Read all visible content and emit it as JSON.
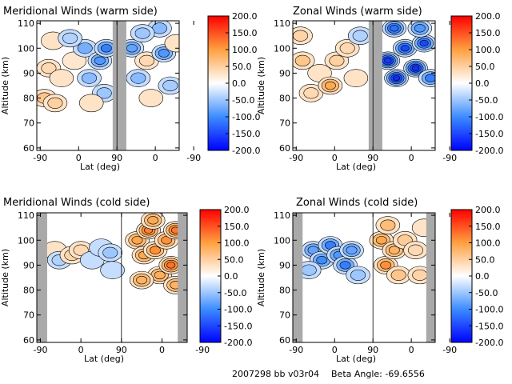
{
  "footer": {
    "id_text": "2007298 bb v03r04",
    "beta_text": "Beta Angle: -69.6556"
  },
  "chart_data": [
    {
      "type": "heatmap",
      "title": "Meridional Winds (warm side)",
      "xlabel": "Lat (deg)",
      "ylabel": "Altitude (km)",
      "xticks": [
        "-90",
        "0",
        "90",
        "0",
        "-90"
      ],
      "yticks": [
        60,
        70,
        80,
        90,
        100,
        110
      ],
      "ylim": [
        59,
        111
      ],
      "colorbar": {
        "min": -200,
        "max": 200,
        "ticks": [
          "200.0",
          "150.0",
          "100.0",
          "50.0",
          "0.0",
          "-50.0",
          "-100.0",
          "-150.0",
          "-200.0"
        ]
      },
      "nodata_band": [
        80,
        112
      ],
      "blobs": [
        {
          "x": -80,
          "y": 80,
          "v": 60
        },
        {
          "x": -55,
          "y": 78,
          "v": 50
        },
        {
          "x": -70,
          "y": 92,
          "v": 40
        },
        {
          "x": -40,
          "y": 88,
          "v": 35
        },
        {
          "x": -60,
          "y": 103,
          "v": 30
        },
        {
          "x": -10,
          "y": 95,
          "v": 25
        },
        {
          "x": 15,
          "y": 100,
          "v": -70
        },
        {
          "x": 25,
          "y": 88,
          "v": -60
        },
        {
          "x": 50,
          "y": 95,
          "v": -90
        },
        {
          "x": 65,
          "y": 100,
          "v": -110
        },
        {
          "x": 60,
          "y": 82,
          "v": -50
        },
        {
          "x": 30,
          "y": 78,
          "v": 35
        },
        {
          "x": -20,
          "y": 104,
          "v": -40
        },
        {
          "x": 125,
          "y": 100,
          "v": -80
        },
        {
          "x": 140,
          "y": 88,
          "v": -60
        },
        {
          "x": 160,
          "y": 95,
          "v": 40
        },
        {
          "x": 170,
          "y": 80,
          "v": 30
        },
        {
          "x": 200,
          "y": 98,
          "v": -90
        },
        {
          "x": 215,
          "y": 85,
          "v": -45
        },
        {
          "x": 190,
          "y": 108,
          "v": -60
        },
        {
          "x": 230,
          "y": 102,
          "v": 30
        },
        {
          "x": 150,
          "y": 106,
          "v": -50
        }
      ]
    },
    {
      "type": "heatmap",
      "title": "Zonal Winds (warm side)",
      "xlabel": "Lat (deg)",
      "ylabel": "Altitude (km)",
      "xticks": [
        "-90",
        "0",
        "90",
        "0",
        "-90"
      ],
      "yticks": [
        60,
        70,
        80,
        90,
        100,
        110
      ],
      "ylim": [
        59,
        111
      ],
      "colorbar": {
        "min": -200,
        "max": 200,
        "ticks": [
          "200.0",
          "150.0",
          "100.0",
          "50.0",
          "0.0",
          "-50.0",
          "-100.0",
          "-150.0",
          "-200.0"
        ]
      },
      "nodata_band": [
        80,
        112
      ],
      "blobs": [
        {
          "x": -75,
          "y": 95,
          "v": 60
        },
        {
          "x": -80,
          "y": 105,
          "v": 45
        },
        {
          "x": -55,
          "y": 82,
          "v": 40
        },
        {
          "x": -35,
          "y": 90,
          "v": 35
        },
        {
          "x": -10,
          "y": 85,
          "v": 90
        },
        {
          "x": 5,
          "y": 95,
          "v": 50
        },
        {
          "x": 30,
          "y": 100,
          "v": 40
        },
        {
          "x": 50,
          "y": 88,
          "v": 35
        },
        {
          "x": 60,
          "y": 105,
          "v": -40
        },
        {
          "x": 125,
          "y": 95,
          "v": -160
        },
        {
          "x": 145,
          "y": 88,
          "v": -170
        },
        {
          "x": 165,
          "y": 100,
          "v": -150
        },
        {
          "x": 190,
          "y": 92,
          "v": -165
        },
        {
          "x": 210,
          "y": 102,
          "v": -150
        },
        {
          "x": 225,
          "y": 88,
          "v": -110
        },
        {
          "x": 140,
          "y": 108,
          "v": -120
        },
        {
          "x": 200,
          "y": 108,
          "v": -90
        }
      ]
    },
    {
      "type": "heatmap",
      "title": "Meridional Winds (cold side)",
      "xlabel": "Lat (deg)",
      "ylabel": "Altitude (km)",
      "xticks": [
        "-90",
        "0",
        "90",
        "0",
        "-90"
      ],
      "yticks": [
        60,
        70,
        80,
        90,
        100,
        110
      ],
      "ylim": [
        59,
        111
      ],
      "colorbar": {
        "min": -200,
        "max": 200,
        "ticks": [
          "200.0",
          "150.0",
          "100.0",
          "50.0",
          "0.0",
          "-50.0",
          "-100.0",
          "-150.0",
          "-200.0"
        ]
      },
      "nodata_bands": [
        [
          -98,
          -75
        ],
        [
          215,
          236
        ]
      ],
      "blobs": [
        {
          "x": -58,
          "y": 96,
          "v": 35
        },
        {
          "x": -48,
          "y": 92,
          "v": -40
        },
        {
          "x": -20,
          "y": 94,
          "v": 45
        },
        {
          "x": 0,
          "y": 96,
          "v": 40
        },
        {
          "x": 25,
          "y": 92,
          "v": -35
        },
        {
          "x": 45,
          "y": 97,
          "v": -35
        },
        {
          "x": 65,
          "y": 95,
          "v": -50
        },
        {
          "x": 70,
          "y": 88,
          "v": -35
        },
        {
          "x": 125,
          "y": 100,
          "v": 95
        },
        {
          "x": 140,
          "y": 94,
          "v": 90
        },
        {
          "x": 150,
          "y": 104,
          "v": 120
        },
        {
          "x": 165,
          "y": 96,
          "v": 110
        },
        {
          "x": 175,
          "y": 86,
          "v": 85
        },
        {
          "x": 190,
          "y": 100,
          "v": 110
        },
        {
          "x": 200,
          "y": 90,
          "v": 130
        },
        {
          "x": 210,
          "y": 104,
          "v": 125
        },
        {
          "x": 210,
          "y": 82,
          "v": 80
        },
        {
          "x": 135,
          "y": 84,
          "v": 80
        },
        {
          "x": 160,
          "y": 108,
          "v": 90
        }
      ]
    },
    {
      "type": "heatmap",
      "title": "Zonal Winds (cold side)",
      "xlabel": "Lat (deg)",
      "ylabel": "Altitude (km)",
      "xticks": [
        "-90",
        "0",
        "90",
        "0",
        "-90"
      ],
      "yticks": [
        60,
        70,
        80,
        90,
        100,
        110
      ],
      "ylim": [
        59,
        111
      ],
      "colorbar": {
        "min": -200,
        "max": 200,
        "ticks": [
          "200.0",
          "150.0",
          "100.0",
          "50.0",
          "0.0",
          "-50.0",
          "-100.0",
          "-150.0",
          "-200.0"
        ]
      },
      "nodata_bands": [
        [
          -98,
          -75
        ],
        [
          215,
          236
        ]
      ],
      "blobs": [
        {
          "x": -50,
          "y": 96,
          "v": -80
        },
        {
          "x": -30,
          "y": 92,
          "v": -100
        },
        {
          "x": -10,
          "y": 98,
          "v": -110
        },
        {
          "x": 10,
          "y": 94,
          "v": -90
        },
        {
          "x": 25,
          "y": 90,
          "v": -110
        },
        {
          "x": 40,
          "y": 96,
          "v": -80
        },
        {
          "x": -60,
          "y": 88,
          "v": -50
        },
        {
          "x": 55,
          "y": 86,
          "v": -50
        },
        {
          "x": 110,
          "y": 100,
          "v": 95
        },
        {
          "x": 120,
          "y": 90,
          "v": 110
        },
        {
          "x": 140,
          "y": 96,
          "v": 80
        },
        {
          "x": 150,
          "y": 86,
          "v": 60
        },
        {
          "x": 165,
          "y": 100,
          "v": 55
        },
        {
          "x": 190,
          "y": 96,
          "v": 40
        },
        {
          "x": 200,
          "y": 86,
          "v": 45
        },
        {
          "x": 210,
          "y": 105,
          "v": 35
        },
        {
          "x": 125,
          "y": 106,
          "v": 70
        }
      ]
    }
  ]
}
